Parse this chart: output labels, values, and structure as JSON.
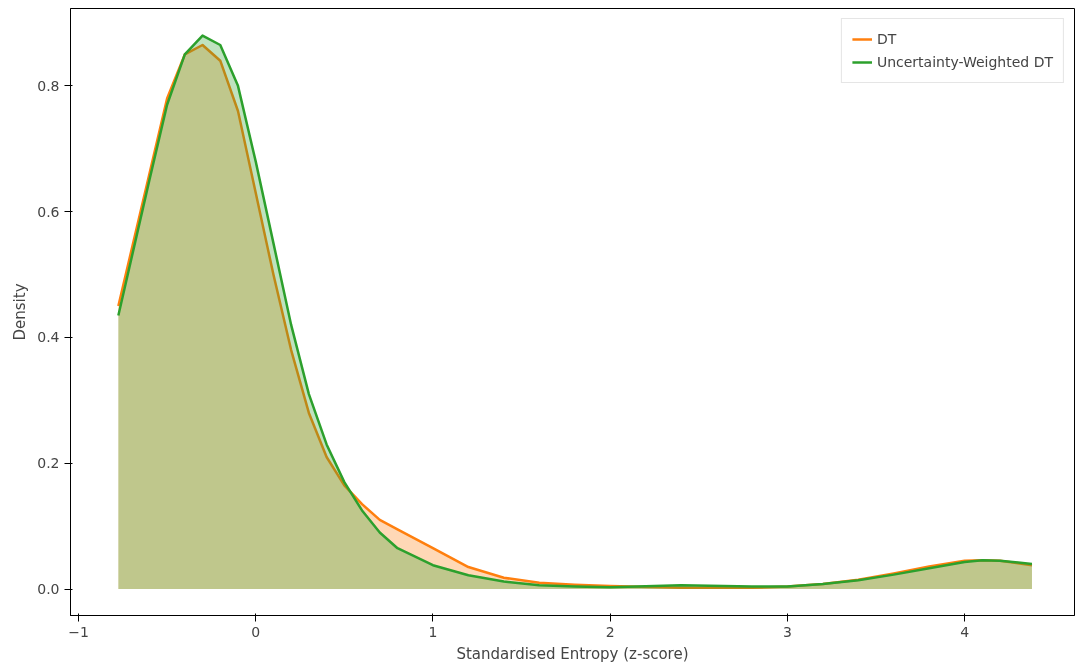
{
  "chart_data": {
    "type": "area",
    "xlabel": "Standardised Entropy (z-score)",
    "ylabel": "Density",
    "x": [
      -0.775,
      -0.6,
      -0.5,
      -0.4,
      -0.3,
      -0.2,
      -0.1,
      0,
      0.1,
      0.2,
      0.3,
      0.4,
      0.5,
      0.6,
      0.7,
      0.8,
      1.0,
      1.2,
      1.4,
      1.6,
      1.8,
      2.0,
      2.4,
      2.8,
      3.0,
      3.2,
      3.4,
      3.6,
      3.8,
      4.0,
      4.1,
      4.2,
      4.38
    ],
    "series": [
      {
        "name": "DT",
        "color": "#ff7f0e",
        "values": [
          0.45,
          0.66,
          0.78,
          0.85,
          0.865,
          0.84,
          0.76,
          0.63,
          0.5,
          0.38,
          0.28,
          0.21,
          0.165,
          0.135,
          0.11,
          0.095,
          0.065,
          0.035,
          0.018,
          0.01,
          0.007,
          0.005,
          0.002,
          0.002,
          0.004,
          0.008,
          0.015,
          0.025,
          0.036,
          0.045,
          0.046,
          0.045,
          0.038
        ]
      },
      {
        "name": "Uncertainty-Weighted DT",
        "color": "#2ca02c",
        "values": [
          0.435,
          0.65,
          0.77,
          0.85,
          0.88,
          0.865,
          0.8,
          0.68,
          0.55,
          0.42,
          0.31,
          0.23,
          0.17,
          0.125,
          0.09,
          0.065,
          0.038,
          0.022,
          0.012,
          0.006,
          0.004,
          0.003,
          0.006,
          0.004,
          0.004,
          0.008,
          0.014,
          0.023,
          0.033,
          0.043,
          0.046,
          0.045,
          0.04
        ]
      }
    ],
    "xlim": [
      -1.045,
      4.62
    ],
    "ylim": [
      -0.042,
      0.923
    ],
    "xticks": [
      {
        "value": -1,
        "label": "−1"
      },
      0,
      1,
      2,
      3,
      4
    ],
    "yticks": [
      {
        "value": 0,
        "label": "0.0"
      },
      0.2,
      0.4,
      0.6,
      0.8
    ],
    "legend": "top right",
    "grid": false
  }
}
